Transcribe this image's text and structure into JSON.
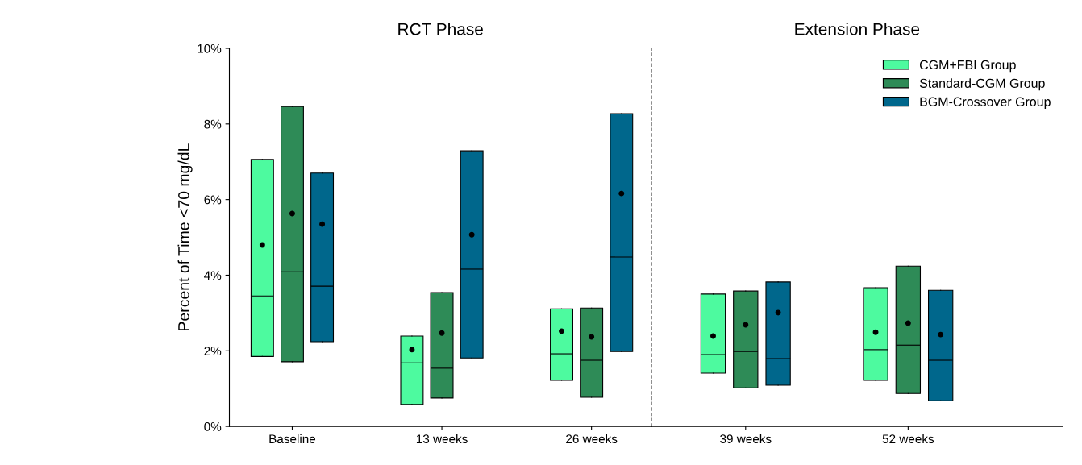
{
  "chart_data": [
    {
      "type": "box",
      "title": "RCT Phase",
      "ylabel": "Percent of Time <70 mg/dL",
      "categories": [
        "Baseline",
        "13 weeks",
        "26 weeks"
      ],
      "ylim": [
        0,
        10
      ],
      "yticks": [
        {
          "value": 0,
          "label": "0%"
        },
        {
          "value": 2,
          "label": "2%"
        },
        {
          "value": 4,
          "label": "4%"
        },
        {
          "value": 6,
          "label": "6%"
        },
        {
          "value": 8,
          "label": "8%"
        },
        {
          "value": 10,
          "label": "10%"
        }
      ],
      "grid": false,
      "legend": false,
      "series": [
        {
          "color": "#4dfa9f",
          "boxes": [
            {
              "low": 1.85,
              "q1": 1.85,
              "median": 3.45,
              "q3": 7.06,
              "high": 7.06,
              "mean": 4.8
            },
            {
              "low": 0.58,
              "q1": 0.58,
              "median": 1.68,
              "q3": 2.39,
              "high": 2.39,
              "mean": 2.03
            },
            {
              "low": 1.22,
              "q1": 1.22,
              "median": 1.92,
              "q3": 3.11,
              "high": 3.11,
              "mean": 2.52
            }
          ]
        },
        {
          "color": "#2e8b57",
          "boxes": [
            {
              "low": 1.71,
              "q1": 1.71,
              "median": 4.09,
              "q3": 8.46,
              "high": 8.46,
              "mean": 5.63
            },
            {
              "low": 0.75,
              "q1": 0.75,
              "median": 1.54,
              "q3": 3.54,
              "high": 3.54,
              "mean": 2.47
            },
            {
              "low": 0.77,
              "q1": 0.77,
              "median": 1.75,
              "q3": 3.13,
              "high": 3.13,
              "mean": 2.37
            }
          ]
        },
        {
          "color": "#00678c",
          "boxes": [
            {
              "low": 2.24,
              "q1": 2.24,
              "median": 3.71,
              "q3": 6.7,
              "high": 6.7,
              "mean": 5.35
            },
            {
              "low": 1.81,
              "q1": 1.81,
              "median": 4.16,
              "q3": 7.29,
              "high": 7.29,
              "mean": 5.07
            },
            {
              "low": 1.98,
              "q1": 1.98,
              "median": 4.48,
              "q3": 8.27,
              "high": 8.27,
              "mean": 6.16
            }
          ]
        }
      ]
    },
    {
      "type": "box",
      "title": "Extension Phase",
      "categories": [
        "39 weeks",
        "52 weeks"
      ],
      "tick_labels": "x",
      "ylim": [
        0,
        10
      ],
      "grid": false,
      "legend": "top right",
      "series": [
        {
          "name": "CGM+FBI Group",
          "color": "#4dfa9f",
          "boxes": [
            {
              "low": 1.41,
              "q1": 1.41,
              "median": 1.9,
              "q3": 3.5,
              "high": 3.5,
              "mean": 2.39
            },
            {
              "low": 1.22,
              "q1": 1.22,
              "median": 2.03,
              "q3": 3.67,
              "high": 3.67,
              "mean": 2.49
            }
          ]
        },
        {
          "name": "Standard-CGM Group",
          "color": "#2e8b57",
          "boxes": [
            {
              "low": 1.02,
              "q1": 1.02,
              "median": 1.98,
              "q3": 3.58,
              "high": 3.58,
              "mean": 2.69
            },
            {
              "low": 0.87,
              "q1": 0.87,
              "median": 2.15,
              "q3": 4.24,
              "high": 4.24,
              "mean": 2.73
            }
          ]
        },
        {
          "name": "BGM-Crossover Group",
          "color": "#00678c",
          "boxes": [
            {
              "low": 1.09,
              "q1": 1.09,
              "median": 1.79,
              "q3": 3.82,
              "high": 3.82,
              "mean": 3.01
            },
            {
              "low": 0.68,
              "q1": 0.68,
              "median": 1.75,
              "q3": 3.6,
              "high": 3.6,
              "mean": 2.43
            }
          ]
        }
      ]
    }
  ]
}
